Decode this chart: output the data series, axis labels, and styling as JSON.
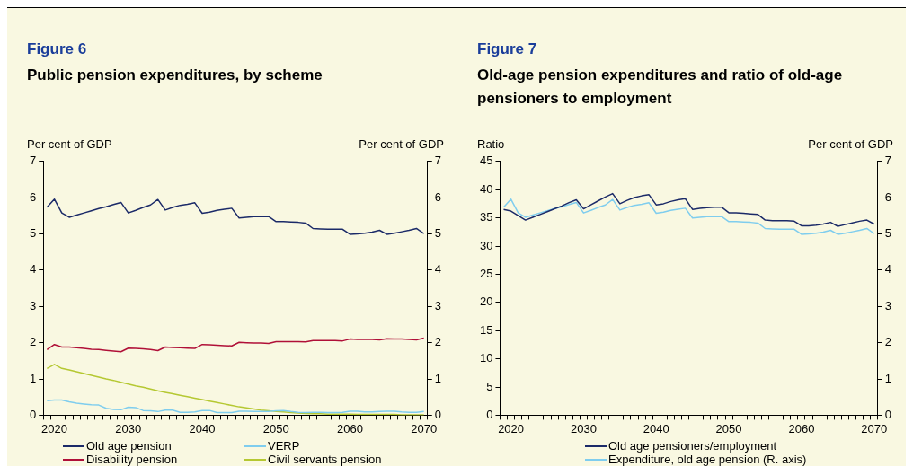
{
  "chart_data": [
    {
      "type": "line",
      "title": "Figure 6",
      "subtitle": "Public pension expenditures, by scheme",
      "ylabel": "Per cent of GDP",
      "y2label": "Per cent of GDP",
      "categories": [
        null,
        "2020",
        null,
        null,
        null,
        null,
        null,
        null,
        null,
        null,
        null,
        "2030",
        null,
        null,
        null,
        null,
        null,
        null,
        null,
        null,
        null,
        "2040",
        null,
        null,
        null,
        null,
        null,
        null,
        null,
        null,
        null,
        "2050",
        null,
        null,
        null,
        null,
        null,
        null,
        null,
        null,
        null,
        "2060",
        null,
        null,
        null,
        null,
        null,
        null,
        null,
        null,
        null,
        "2070"
      ],
      "ylim": [
        0,
        7
      ],
      "yticks": [
        0,
        1,
        2,
        3,
        4,
        5,
        6,
        7
      ],
      "y2lim": [
        0,
        7
      ],
      "y2ticks": [
        0,
        1,
        2,
        3,
        4,
        5,
        6,
        7
      ],
      "legend": "bottom",
      "marker": "none",
      "series": [
        {
          "name": "Old age pension",
          "color": "#1b2a68",
          "values": [
            5.74,
            5.96,
            5.58,
            5.46,
            5.52,
            5.58,
            5.64,
            5.7,
            5.75,
            5.81,
            5.87,
            5.58,
            5.65,
            5.73,
            5.8,
            5.95,
            5.66,
            5.73,
            5.79,
            5.82,
            5.86,
            5.57,
            5.6,
            5.65,
            5.68,
            5.71,
            5.44,
            5.46,
            5.48,
            5.48,
            5.48,
            5.34,
            5.34,
            5.33,
            5.32,
            5.3,
            5.15,
            5.14,
            5.13,
            5.13,
            5.13,
            4.99,
            5.0,
            5.02,
            5.05,
            5.1,
            4.99,
            5.02,
            5.06,
            5.1,
            5.15,
            5.01
          ]
        },
        {
          "name": "VERP",
          "color": "#7fcdee",
          "values": [
            0.4,
            0.42,
            0.42,
            0.37,
            0.33,
            0.31,
            0.29,
            0.28,
            0.19,
            0.16,
            0.15,
            0.22,
            0.21,
            0.13,
            0.12,
            0.1,
            0.14,
            0.14,
            0.08,
            0.08,
            0.09,
            0.13,
            0.13,
            0.07,
            0.07,
            0.07,
            0.11,
            0.11,
            0.1,
            0.1,
            0.1,
            0.12,
            0.13,
            0.1,
            0.08,
            0.07,
            0.08,
            0.08,
            0.07,
            0.07,
            0.08,
            0.11,
            0.11,
            0.09,
            0.09,
            0.1,
            0.11,
            0.11,
            0.09,
            0.08,
            0.08,
            0.1
          ]
        },
        {
          "name": "Disability pension",
          "color": "#b01038",
          "values": [
            1.81,
            1.95,
            1.88,
            1.88,
            1.86,
            1.84,
            1.82,
            1.81,
            1.79,
            1.77,
            1.75,
            1.85,
            1.84,
            1.83,
            1.81,
            1.78,
            1.88,
            1.87,
            1.86,
            1.85,
            1.84,
            1.95,
            1.94,
            1.93,
            1.92,
            1.91,
            2.01,
            2.0,
            1.99,
            1.99,
            1.98,
            2.03,
            2.03,
            2.03,
            2.03,
            2.02,
            2.06,
            2.06,
            2.06,
            2.06,
            2.05,
            2.1,
            2.09,
            2.09,
            2.09,
            2.08,
            2.11,
            2.1,
            2.1,
            2.09,
            2.08,
            2.13
          ]
        },
        {
          "name": "Civil servants pension",
          "color": "#b5c832",
          "values": [
            1.29,
            1.4,
            1.29,
            1.25,
            1.2,
            1.15,
            1.1,
            1.05,
            1.0,
            0.96,
            0.91,
            0.86,
            0.81,
            0.77,
            0.72,
            0.67,
            0.63,
            0.59,
            0.55,
            0.51,
            0.47,
            0.43,
            0.39,
            0.35,
            0.31,
            0.27,
            0.23,
            0.2,
            0.17,
            0.14,
            0.12,
            0.1,
            0.09,
            0.07,
            0.06,
            0.05,
            0.04,
            0.04,
            0.03,
            0.03,
            0.03,
            0.03,
            0.02,
            0.02,
            0.02,
            0.02,
            0.02,
            0.02,
            0.01,
            0.01,
            0.01,
            0.01
          ]
        }
      ]
    },
    {
      "type": "line",
      "title": "Figure 7",
      "subtitle": "Old-age pension expenditures and ratio of old-age pensioners to employment",
      "ylabel": "Ratio",
      "y2label": "Per cent of GDP",
      "categories": [
        null,
        "2020",
        null,
        null,
        null,
        null,
        null,
        null,
        null,
        null,
        null,
        "2030",
        null,
        null,
        null,
        null,
        null,
        null,
        null,
        null,
        null,
        "2040",
        null,
        null,
        null,
        null,
        null,
        null,
        null,
        null,
        null,
        "2050",
        null,
        null,
        null,
        null,
        null,
        null,
        null,
        null,
        null,
        "2060",
        null,
        null,
        null,
        null,
        null,
        null,
        null,
        null,
        null,
        "2070"
      ],
      "ylim": [
        0,
        45
      ],
      "yticks": [
        0,
        5,
        10,
        15,
        20,
        25,
        30,
        35,
        40,
        45
      ],
      "y2lim": [
        0,
        7
      ],
      "y2ticks": [
        0,
        1,
        2,
        3,
        4,
        5,
        6,
        7
      ],
      "legend": "bottom",
      "marker": "none",
      "series": [
        {
          "name": "Old age pensioners/employment",
          "color": "#1b2a68",
          "values": [
            36.5,
            36.2,
            35.4,
            34.6,
            35.1,
            35.6,
            36.1,
            36.6,
            37.1,
            37.7,
            38.2,
            36.6,
            37.3,
            38.0,
            38.7,
            39.3,
            37.5,
            38.1,
            38.6,
            38.9,
            39.1,
            37.3,
            37.5,
            37.9,
            38.2,
            38.4,
            36.5,
            36.7,
            36.8,
            36.9,
            36.9,
            35.9,
            35.9,
            35.8,
            35.7,
            35.6,
            34.6,
            34.5,
            34.5,
            34.5,
            34.4,
            33.6,
            33.6,
            33.7,
            33.9,
            34.2,
            33.5,
            33.8,
            34.1,
            34.4,
            34.6,
            33.9
          ]
        },
        {
          "name": "Expenditure, old age pension (R. axis)",
          "color": "#7fcdee",
          "axis": "y2",
          "values": [
            5.74,
            5.96,
            5.58,
            5.46,
            5.52,
            5.58,
            5.64,
            5.7,
            5.75,
            5.81,
            5.87,
            5.58,
            5.65,
            5.73,
            5.8,
            5.95,
            5.66,
            5.73,
            5.79,
            5.82,
            5.86,
            5.57,
            5.6,
            5.65,
            5.68,
            5.71,
            5.44,
            5.46,
            5.48,
            5.48,
            5.48,
            5.34,
            5.34,
            5.33,
            5.32,
            5.3,
            5.15,
            5.14,
            5.13,
            5.13,
            5.13,
            4.99,
            5.0,
            5.02,
            5.05,
            5.1,
            4.99,
            5.02,
            5.06,
            5.1,
            5.15,
            5.01
          ]
        }
      ]
    }
  ]
}
